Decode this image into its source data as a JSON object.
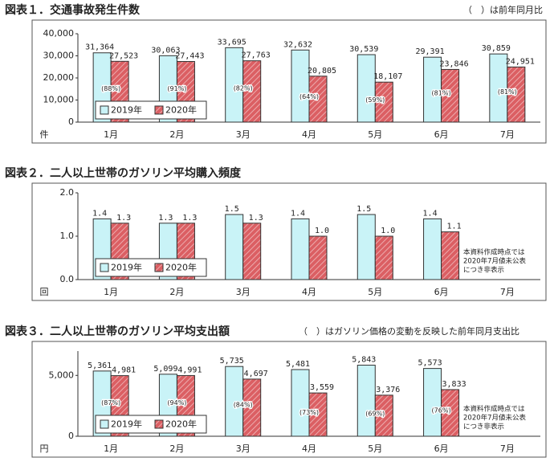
{
  "chart_data": [
    {
      "type": "bar",
      "title": "図表１．交通事故発生件数",
      "note": "（　）は前年同月比",
      "y_label": "件",
      "categories": [
        "1月",
        "2月",
        "3月",
        "4月",
        "5月",
        "6月",
        "7月"
      ],
      "series": [
        {
          "name": "2019年",
          "color": "#c9f3f7",
          "values": [
            31364,
            30063,
            33695,
            32632,
            30539,
            29391,
            30859
          ],
          "value_labels": [
            "31,364",
            "30,063",
            "33,695",
            "32,632",
            "30,539",
            "29,391",
            "30,859"
          ]
        },
        {
          "name": "2020年",
          "color": "#db5f63",
          "hatch": true,
          "values": [
            27523,
            27443,
            27763,
            20805,
            18107,
            23846,
            24951
          ],
          "value_labels": [
            "27,523",
            "27,443",
            "27,763",
            "20,805",
            "18,107",
            "23,846",
            "24,951"
          ]
        }
      ],
      "ratio_labels": [
        "(88%)",
        "(91%)",
        "(82%)",
        "(64%)",
        "(59%)",
        "(81%)",
        "(81%)"
      ],
      "ylim": [
        0,
        40000
      ],
      "yticks": [
        0,
        {
          "value": 10000,
          "label": "10,000"
        },
        {
          "value": 20000,
          "label": "20,000"
        },
        {
          "value": 30000,
          "label": "30,000"
        },
        {
          "value": 40000,
          "label": "40,000"
        }
      ],
      "legend": "lower left"
    },
    {
      "type": "bar",
      "title": "図表２．二人以上世帯のガソリン平均購入頻度",
      "y_label": "回",
      "categories": [
        "1月",
        "2月",
        "3月",
        "4月",
        "5月",
        "6月",
        "7月"
      ],
      "series": [
        {
          "name": "2019年",
          "color": "#c9f3f7",
          "values": [
            1.4,
            1.3,
            1.5,
            1.4,
            1.5,
            1.4,
            null
          ],
          "value_labels": [
            "1.4",
            "1.3",
            "1.5",
            "1.4",
            "1.5",
            "1.4",
            null
          ]
        },
        {
          "name": "2020年",
          "color": "#db5f63",
          "hatch": true,
          "values": [
            1.3,
            1.3,
            1.3,
            1.0,
            1.0,
            1.1,
            null
          ],
          "value_labels": [
            "1.3",
            "1.3",
            "1.3",
            "1.0",
            "1.0",
            "1.1",
            null
          ]
        }
      ],
      "ylim": [
        0,
        2
      ],
      "yticks": [
        {
          "value": 0,
          "label": "0.0"
        },
        {
          "value": 1,
          "label": "1.0"
        },
        {
          "value": 2,
          "label": "2.0"
        }
      ],
      "legend": "lower left",
      "missing_note": [
        "本資料作成時点では",
        "2020年7月値未公表",
        "につき非表示"
      ]
    },
    {
      "type": "bar",
      "title": "図表３．二人以上世帯のガソリン平均支出額",
      "note": "（　）はガソリン価格の変動を反映した前年同月支出比",
      "y_label": "円",
      "categories": [
        "1月",
        "2月",
        "3月",
        "4月",
        "5月",
        "6月",
        "7月"
      ],
      "series": [
        {
          "name": "2019年",
          "color": "#c9f3f7",
          "values": [
            5361,
            5099,
            5735,
            5481,
            5843,
            5573,
            null
          ],
          "value_labels": [
            "5,361",
            "5,099",
            "5,735",
            "5,481",
            "5,843",
            "5,573",
            null
          ]
        },
        {
          "name": "2020年",
          "color": "#db5f63",
          "hatch": true,
          "values": [
            4981,
            4991,
            4697,
            3559,
            3376,
            3833,
            null
          ],
          "value_labels": [
            "4,981",
            "4,991",
            "4,697",
            "3,559",
            "3,376",
            "3,833",
            null
          ]
        }
      ],
      "ratio_labels": [
        "(87%)",
        "(94%)",
        "(84%)",
        "(73%)",
        "(69%)",
        "(76%)",
        null
      ],
      "ylim": [
        0,
        7000
      ],
      "yticks": [
        0,
        {
          "value": 5000,
          "label": "5,000"
        }
      ],
      "legend": "lower left",
      "missing_note": [
        "本資料作成時点では",
        "2020年7月値未公表",
        "につき非表示"
      ]
    }
  ]
}
